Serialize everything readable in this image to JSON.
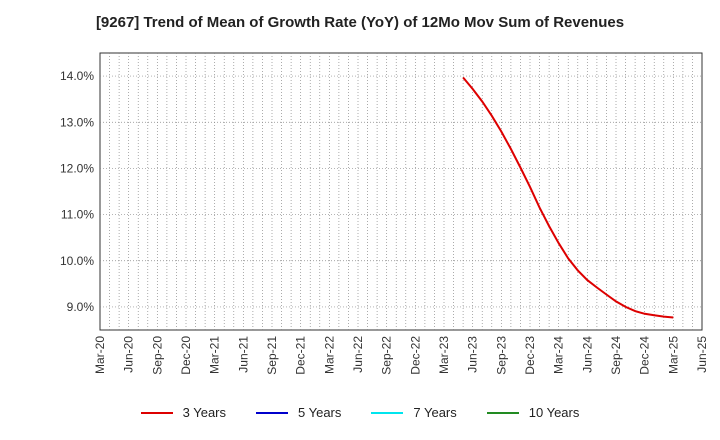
{
  "chart_data": {
    "type": "line",
    "title": "[9267]  Trend of Mean of Growth Rate (YoY) of 12Mo Mov Sum of Revenues",
    "xlabel": "",
    "ylabel": "",
    "x_tick_labels": [
      "Mar-20",
      "Jun-20",
      "Sep-20",
      "Dec-20",
      "Mar-21",
      "Jun-21",
      "Sep-21",
      "Dec-21",
      "Mar-22",
      "Jun-22",
      "Sep-22",
      "Dec-22",
      "Mar-23",
      "Jun-23",
      "Sep-23",
      "Dec-23",
      "Mar-24",
      "Jun-24",
      "Sep-24",
      "Dec-24",
      "Mar-25",
      "Jun-25"
    ],
    "y_ticks": [
      9.0,
      10.0,
      11.0,
      12.0,
      13.0,
      14.0
    ],
    "y_tick_labels": [
      "9.0%",
      "10.0%",
      "11.0%",
      "12.0%",
      "13.0%",
      "14.0%"
    ],
    "ylim": [
      8.5,
      14.5
    ],
    "x_range_months": [
      0,
      63
    ],
    "grid": true,
    "legend_position": "bottom",
    "series": [
      {
        "name": "3 Years",
        "color": "#dd0000",
        "x_months": [
          38,
          39,
          40,
          41,
          42,
          43,
          44,
          45,
          46,
          47,
          48,
          49,
          50,
          51,
          52,
          53,
          54,
          55,
          56,
          57,
          58,
          59,
          60
        ],
        "values": [
          13.97,
          13.72,
          13.45,
          13.14,
          12.8,
          12.42,
          12.02,
          11.6,
          11.15,
          10.75,
          10.38,
          10.05,
          9.79,
          9.58,
          9.42,
          9.27,
          9.12,
          9.0,
          8.91,
          8.85,
          8.82,
          8.79,
          8.77
        ]
      },
      {
        "name": "5 Years",
        "color": "#0000cc",
        "x_months": [],
        "values": []
      },
      {
        "name": "7 Years",
        "color": "#00e5ee",
        "x_months": [],
        "values": []
      },
      {
        "name": "10 Years",
        "color": "#228b22",
        "x_months": [],
        "values": []
      }
    ]
  }
}
